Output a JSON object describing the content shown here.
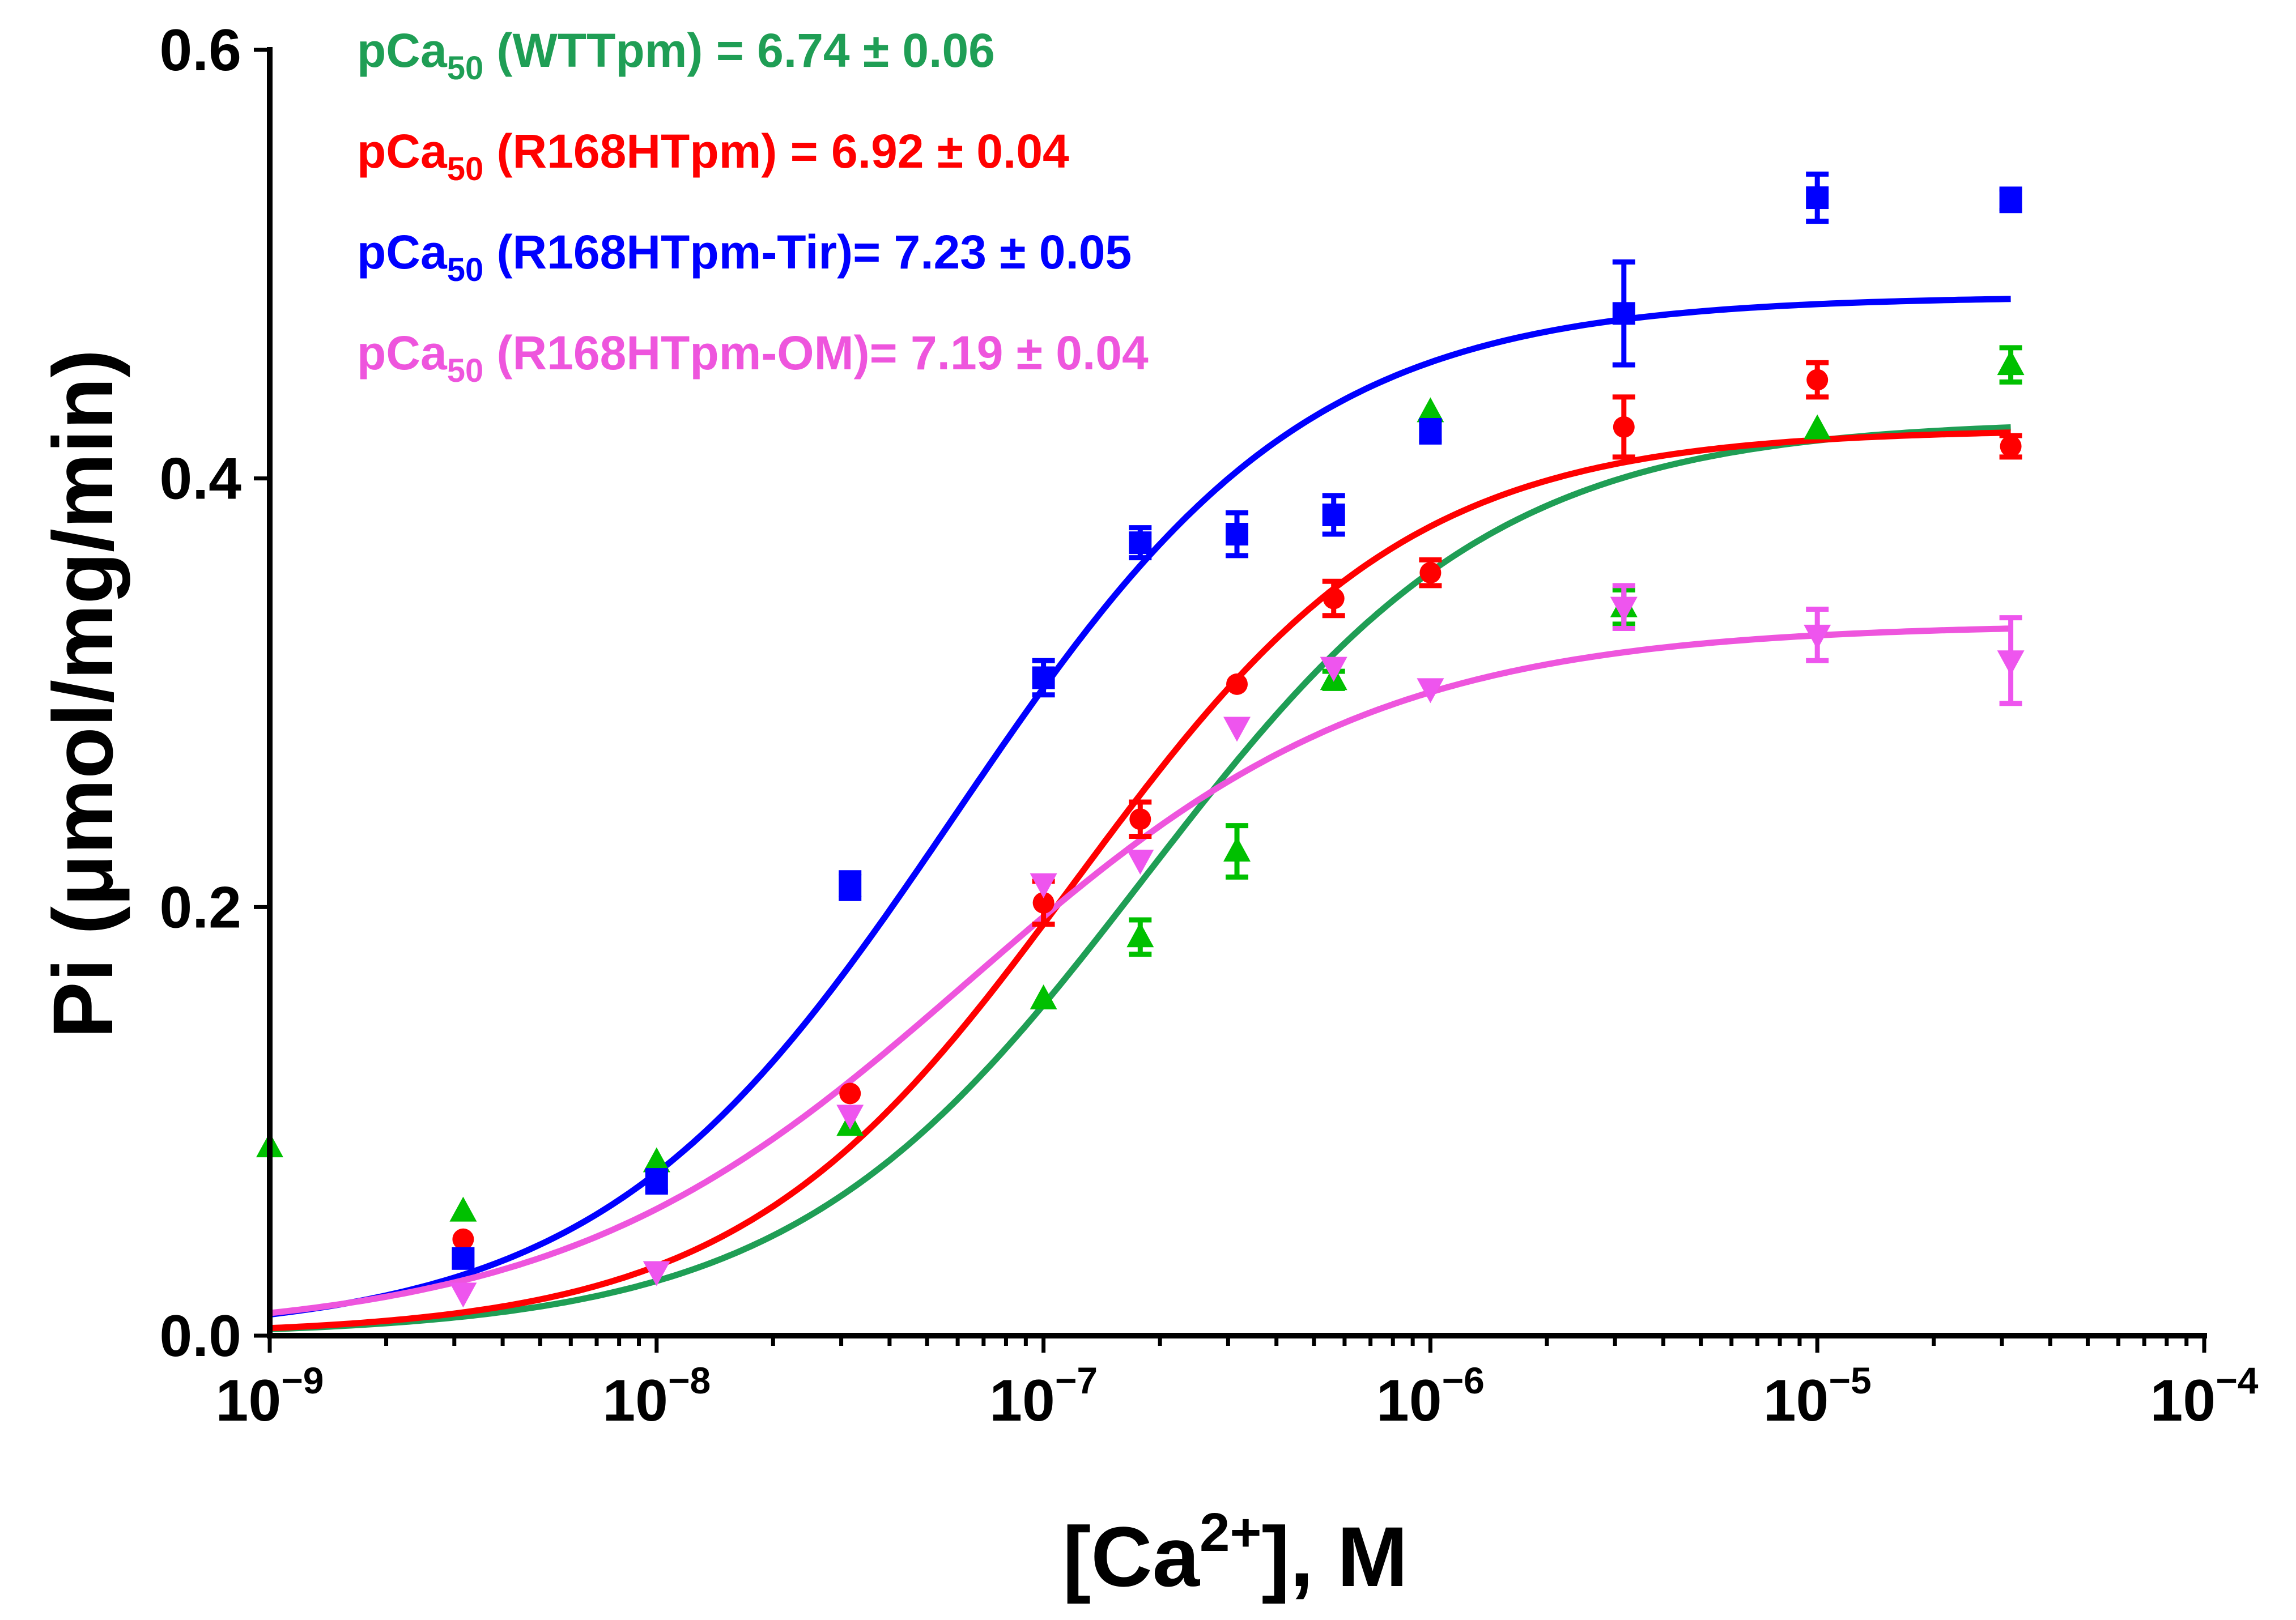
{
  "chart_data": {
    "type": "scatter",
    "title": "",
    "xlabel": {
      "prefix": "[Ca",
      "sup": "2+",
      "suffix": "], M"
    },
    "ylabel": "Pi (μmol/mg/min)",
    "xscale": "log",
    "xlim_exponents": [
      -9,
      -4
    ],
    "ylim": [
      0,
      0.6
    ],
    "y_ticks": [
      "0.0",
      "0.2",
      "0.4",
      "0.6"
    ],
    "x_ticks": [
      {
        "base": "10",
        "exp": "−9"
      },
      {
        "base": "10",
        "exp": "−8"
      },
      {
        "base": "10",
        "exp": "−7"
      },
      {
        "base": "10",
        "exp": "−6"
      },
      {
        "base": "10",
        "exp": "−5"
      },
      {
        "base": "10",
        "exp": "−4"
      }
    ],
    "legend_position": "top-left",
    "series": [
      {
        "name": "WTTpm",
        "legend": {
          "pre": "pCa",
          "sub": "50",
          "post": " (WTTpm) = 6.74 ± 0.06"
        },
        "color": "#1f9e55",
        "marker_color": "#00c000",
        "marker": "triangle-up",
        "fit": {
          "pCa50": 6.74,
          "bottom": 0.0,
          "top": 0.427,
          "hill": 0.95
        },
        "points": [
          {
            "logx": -9.0,
            "y": 0.088,
            "err": 0
          },
          {
            "logx": -8.5,
            "y": 0.058,
            "err": 0
          },
          {
            "logx": -8.0,
            "y": 0.081,
            "err": 0
          },
          {
            "logx": -7.5,
            "y": 0.098,
            "err": 0
          },
          {
            "logx": -7.0,
            "y": 0.157,
            "err": 0
          },
          {
            "logx": -6.75,
            "y": 0.186,
            "err": 0.008
          },
          {
            "logx": -6.5,
            "y": 0.226,
            "err": 0.012
          },
          {
            "logx": -6.25,
            "y": 0.306,
            "err": 0.004
          },
          {
            "logx": -6.0,
            "y": 0.431,
            "err": 0
          },
          {
            "logx": -5.5,
            "y": 0.34,
            "err": 0.008
          },
          {
            "logx": -5.0,
            "y": 0.423,
            "err": 0
          },
          {
            "logx": -4.5,
            "y": 0.453,
            "err": 0.008
          }
        ]
      },
      {
        "name": "R168HTpm",
        "legend": {
          "pre": "pCa",
          "sub": "50",
          "post": " (R168HTpm) = 6.92 ± 0.04"
        },
        "color": "#ff0000",
        "marker_color": "#ff0000",
        "marker": "circle",
        "fit": {
          "pCa50": 6.92,
          "bottom": 0.0,
          "top": 0.423,
          "hill": 1.0
        },
        "points": [
          {
            "logx": -8.5,
            "y": 0.045,
            "err": 0
          },
          {
            "logx": -7.5,
            "y": 0.113,
            "err": 0
          },
          {
            "logx": -7.0,
            "y": 0.202,
            "err": 0.01
          },
          {
            "logx": -6.75,
            "y": 0.241,
            "err": 0.008
          },
          {
            "logx": -6.5,
            "y": 0.304,
            "err": 0
          },
          {
            "logx": -6.25,
            "y": 0.344,
            "err": 0.008
          },
          {
            "logx": -6.0,
            "y": 0.356,
            "err": 0.006
          },
          {
            "logx": -5.5,
            "y": 0.424,
            "err": 0.014
          },
          {
            "logx": -5.0,
            "y": 0.446,
            "err": 0.008
          },
          {
            "logx": -4.5,
            "y": 0.415,
            "err": 0.005
          }
        ]
      },
      {
        "name": "R168HTpm-Tir",
        "legend": {
          "pre": "pCa",
          "sub": "50",
          "post": " (R168HTpm-Tir)= 7.23 ± 0.05"
        },
        "color": "#0000ff",
        "marker_color": "#0000ff",
        "marker": "square",
        "fit": {
          "pCa50": 7.23,
          "bottom": 0.0,
          "top": 0.485,
          "hill": 0.95
        },
        "points": [
          {
            "logx": -8.5,
            "y": 0.036,
            "err": 0
          },
          {
            "logx": -8.0,
            "y": 0.072,
            "err": 0.005
          },
          {
            "logx": -7.5,
            "y": 0.21,
            "err": 0.006
          },
          {
            "logx": -7.0,
            "y": 0.307,
            "err": 0.008
          },
          {
            "logx": -6.75,
            "y": 0.37,
            "err": 0.007
          },
          {
            "logx": -6.5,
            "y": 0.374,
            "err": 0.01
          },
          {
            "logx": -6.25,
            "y": 0.383,
            "err": 0.009
          },
          {
            "logx": -6.0,
            "y": 0.422,
            "err": 0.005
          },
          {
            "logx": -5.5,
            "y": 0.477,
            "err": 0.024
          },
          {
            "logx": -5.0,
            "y": 0.531,
            "err": 0.011
          },
          {
            "logx": -4.5,
            "y": 0.53,
            "err": 0.005
          }
        ]
      },
      {
        "name": "R168HTpm-OM",
        "legend": {
          "pre": "pCa",
          "sub": "50",
          "post": " (R168HTpm-OM)= 7.19 ± 0.04"
        },
        "color": "#ee55dd",
        "marker_color": "#ee55ee",
        "marker": "triangle-down",
        "fit": {
          "pCa50": 7.19,
          "bottom": 0.0,
          "top": 0.332,
          "hill": 0.82
        },
        "points": [
          {
            "logx": -8.5,
            "y": 0.02,
            "err": 0
          },
          {
            "logx": -8.0,
            "y": 0.03,
            "err": 0
          },
          {
            "logx": -7.5,
            "y": 0.103,
            "err": 0
          },
          {
            "logx": -7.0,
            "y": 0.211,
            "err": 0
          },
          {
            "logx": -6.75,
            "y": 0.222,
            "err": 0
          },
          {
            "logx": -6.5,
            "y": 0.284,
            "err": 0
          },
          {
            "logx": -6.25,
            "y": 0.312,
            "err": 0
          },
          {
            "logx": -6.0,
            "y": 0.302,
            "err": 0
          },
          {
            "logx": -5.5,
            "y": 0.34,
            "err": 0.01
          },
          {
            "logx": -5.0,
            "y": 0.327,
            "err": 0.012
          },
          {
            "logx": -4.5,
            "y": 0.315,
            "err": 0.02
          }
        ]
      }
    ]
  }
}
